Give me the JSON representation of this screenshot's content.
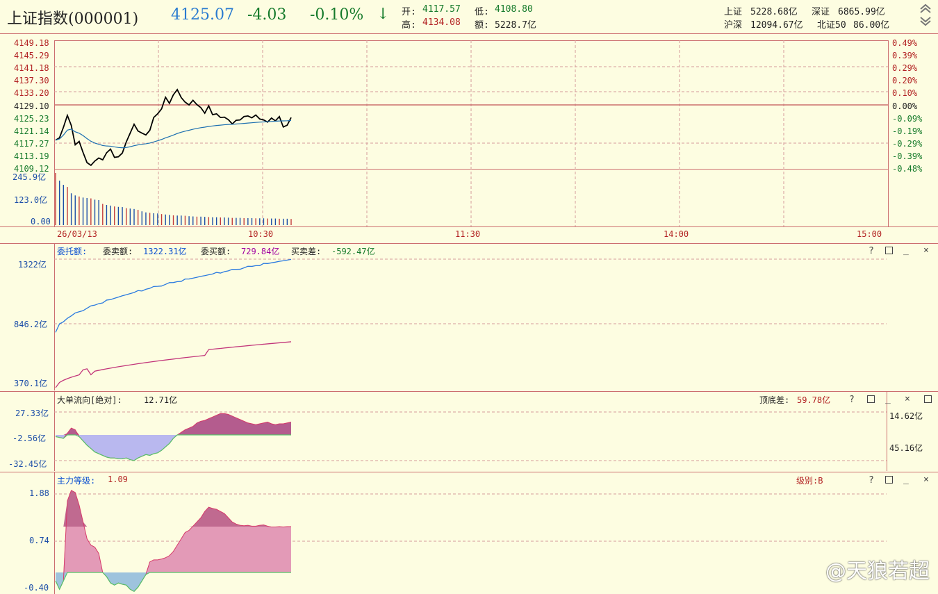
{
  "header": {
    "index_name": "上证指数(000001)",
    "price": "4125.07",
    "change": "-4.03",
    "change_pct": "-0.10%",
    "arrow": "↓",
    "open_label": "开:",
    "open_value": "4117.57",
    "low_label": "低:",
    "low_value": "4108.80",
    "high_label": "高:",
    "high_value": "4134.08",
    "amount_label": "额:",
    "amount_value": "5228.7亿",
    "sh_label": "上证",
    "sh_value": "5228.68亿",
    "sz_label": "深证",
    "sz_value": "6865.99亿",
    "hs_label": "沪深",
    "hs_value": "12094.67亿",
    "bz_label": "北证50",
    "bz_value": "86.00亿",
    "scroll_up_icon": "double-chevron-up-icon",
    "scroll_down_icon": "double-chevron-down-icon"
  },
  "price_panel": {
    "left_ticks": [
      "4149.18",
      "4145.29",
      "4141.18",
      "4137.30",
      "4133.20",
      "4129.10",
      "4125.23",
      "4121.14",
      "4117.27",
      "4113.19",
      "4109.12"
    ],
    "right_ticks": [
      "0.49%",
      "0.39%",
      "0.29%",
      "0.20%",
      "0.10%",
      "0.00%",
      "-0.09%",
      "-0.19%",
      "-0.29%",
      "-0.39%",
      "-0.48%"
    ],
    "prev_close": "4129.10"
  },
  "volume_panel": {
    "ticks": [
      "245.9亿",
      "123.0亿",
      "0.00"
    ]
  },
  "time_axis": {
    "date": "26/03/13",
    "labels": [
      "10:30",
      "11:30",
      "14:00",
      "15:00"
    ]
  },
  "order_panel": {
    "title": "委托额:",
    "sell_label": "委卖额:",
    "sell_value": "1322.31亿",
    "buy_label": "委买额:",
    "buy_value": "729.84亿",
    "diff_label": "买卖差:",
    "diff_value": "-592.47亿",
    "ticks": [
      "1322亿",
      "846.2亿",
      "370.1亿"
    ]
  },
  "bigorder_panel": {
    "title": "大单流向[绝对]:",
    "value": "12.71亿",
    "spread_label": "顶底差:",
    "spread_value": "59.78亿",
    "ticks": [
      "27.33亿",
      "-2.56亿",
      "-32.45亿"
    ],
    "right_top": "14.62亿",
    "right_bottom": "45.16亿"
  },
  "level_panel": {
    "title": "主力等级:",
    "value": "1.09",
    "grade_label": "级别:B",
    "ticks": [
      "1.88",
      "0.74",
      "-0.40"
    ]
  },
  "panel_controls": {
    "help": "?",
    "close": "×"
  },
  "watermark": "@天狼若超",
  "colors": {
    "background": "#fdfde1",
    "grid": "#cc6e6e",
    "up": "#b22222",
    "down": "#157a2a",
    "price_line": "#000000",
    "avg_line": "#1c6fb0",
    "sell_line": "#2a7ae0",
    "buy_line": "#c2357a",
    "fill_pos": "#b45c8e",
    "fill_neg": "#b9b8ef"
  }
}
